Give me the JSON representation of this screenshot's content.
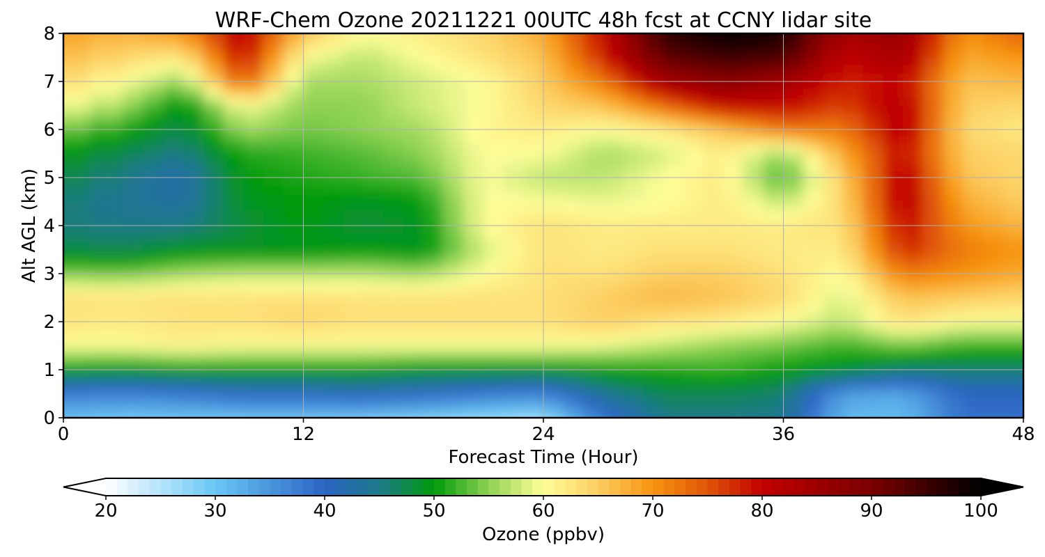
{
  "chart_data": {
    "type": "heatmap",
    "subtype": "filled-contour time-height cross-section",
    "title": "WRF-Chem Ozone  20211221 00UTC 48h fcst at CCNY lidar site",
    "xlabel": "Forecast Time (Hour)",
    "ylabel": "Alt AGL (km)",
    "xlim": [
      0,
      48
    ],
    "ylim": [
      0,
      8
    ],
    "x_ticks": [
      0,
      12,
      24,
      36,
      48
    ],
    "y_ticks": [
      0,
      1,
      2,
      3,
      4,
      5,
      6,
      7,
      8
    ],
    "grid": true,
    "x": [
      0,
      3,
      6,
      9,
      12,
      15,
      18,
      21,
      24,
      27,
      30,
      33,
      36,
      39,
      42,
      45,
      48
    ],
    "y": [
      0.1,
      0.5,
      1.0,
      1.5,
      2.0,
      2.5,
      3.0,
      3.5,
      4.0,
      4.5,
      5.0,
      5.5,
      6.0,
      6.5,
      7.0,
      7.5,
      8.0
    ],
    "z_units": "ppbv",
    "z": [
      [
        28,
        26,
        26,
        25,
        25,
        24,
        23,
        22,
        21,
        35,
        44,
        44,
        44,
        30,
        30,
        38,
        38
      ],
      [
        38,
        37,
        38,
        40,
        40,
        41,
        40,
        38,
        37,
        44,
        47,
        47,
        46,
        34,
        33,
        40,
        40
      ],
      [
        50,
        49,
        50,
        50,
        50,
        50,
        49,
        49,
        49,
        50,
        51,
        52,
        50,
        49,
        46,
        46,
        46
      ],
      [
        60,
        60,
        61,
        60,
        60,
        60,
        60,
        60,
        60,
        59,
        57,
        55,
        54,
        52,
        54,
        52,
        52
      ],
      [
        63,
        62,
        63,
        63,
        64,
        63,
        63,
        63,
        63,
        65,
        63,
        62,
        60,
        57,
        63,
        60,
        60
      ],
      [
        63,
        63,
        63,
        63,
        63,
        63,
        63,
        63,
        63,
        65,
        67,
        66,
        64,
        58,
        66,
        65,
        64
      ],
      [
        55,
        54,
        56,
        57,
        57,
        57,
        56,
        60,
        63,
        63,
        65,
        65,
        63,
        60,
        72,
        70,
        68
      ],
      [
        48,
        47,
        49,
        49,
        49,
        50,
        49,
        58,
        63,
        62,
        63,
        63,
        62,
        62,
        78,
        72,
        70
      ],
      [
        46,
        45,
        45,
        48,
        50,
        48,
        49,
        60,
        63,
        62,
        62,
        62,
        62,
        63,
        80,
        70,
        67
      ],
      [
        47,
        44,
        43,
        49,
        50,
        49,
        50,
        60,
        60,
        59,
        60,
        62,
        57,
        64,
        82,
        68,
        65
      ],
      [
        49,
        45,
        42,
        50,
        51,
        52,
        53,
        60,
        57,
        57,
        60,
        62,
        52,
        65,
        82,
        66,
        64
      ],
      [
        51,
        47,
        45,
        51,
        52,
        53,
        55,
        60,
        60,
        56,
        58,
        62,
        55,
        68,
        80,
        65,
        64
      ],
      [
        56,
        51,
        47,
        56,
        54,
        55,
        56,
        61,
        62,
        60,
        62,
        66,
        72,
        72,
        82,
        64,
        62
      ],
      [
        62,
        56,
        49,
        60,
        55,
        55,
        58,
        60,
        64,
        66,
        73,
        80,
        80,
        76,
        82,
        65,
        64
      ],
      [
        66,
        60,
        55,
        75,
        56,
        56,
        58,
        60,
        65,
        72,
        84,
        88,
        84,
        78,
        80,
        66,
        67
      ],
      [
        68,
        64,
        62,
        80,
        60,
        57,
        60,
        63,
        66,
        78,
        92,
        95,
        94,
        80,
        84,
        68,
        70
      ],
      [
        70,
        67,
        70,
        82,
        66,
        60,
        62,
        64,
        68,
        80,
        96,
        100,
        98,
        84,
        86,
        70,
        74
      ]
    ],
    "colorbar": {
      "label": "Ozone  (ppbv)",
      "vmin": 20,
      "vmax": 100,
      "ticks": [
        20,
        30,
        40,
        50,
        60,
        70,
        80,
        90,
        100
      ],
      "extend": "both",
      "levels": 80,
      "color_stops": [
        {
          "value": 20,
          "color": "#ffffff"
        },
        {
          "value": 30,
          "color": "#6ac7f5"
        },
        {
          "value": 40,
          "color": "#2b64c4"
        },
        {
          "value": 45,
          "color": "#1e7a8a"
        },
        {
          "value": 50,
          "color": "#009a0a"
        },
        {
          "value": 55,
          "color": "#8fd254"
        },
        {
          "value": 60,
          "color": "#fefe99"
        },
        {
          "value": 65,
          "color": "#fcce62"
        },
        {
          "value": 70,
          "color": "#f79410"
        },
        {
          "value": 75,
          "color": "#e05508"
        },
        {
          "value": 80,
          "color": "#c20000"
        },
        {
          "value": 90,
          "color": "#7a0000"
        },
        {
          "value": 100,
          "color": "#000000"
        }
      ]
    }
  }
}
